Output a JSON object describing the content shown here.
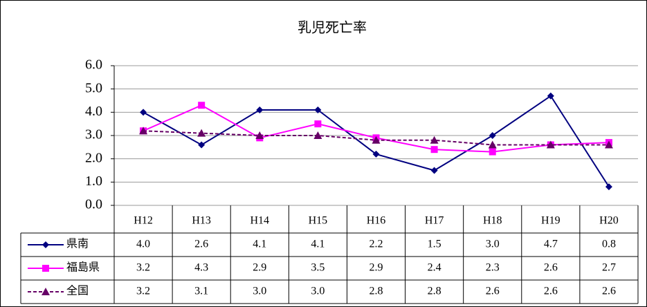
{
  "chart_data": {
    "type": "line",
    "title": "乳児死亡率",
    "categories": [
      "H12",
      "H13",
      "H14",
      "H15",
      "H16",
      "H17",
      "H18",
      "H19",
      "H20"
    ],
    "series": [
      {
        "name": "県南",
        "color": "#000080",
        "marker": "diamond",
        "dash": false,
        "values": [
          4.0,
          2.6,
          4.1,
          4.1,
          2.2,
          1.5,
          3.0,
          4.7,
          0.8
        ],
        "value_labels": [
          "4.0",
          "2.6",
          "4.1",
          "4.1",
          "2.2",
          "1.5",
          "3.0",
          "4.7",
          "0.8"
        ]
      },
      {
        "name": "福島県",
        "color": "#ff00ff",
        "marker": "square",
        "dash": false,
        "values": [
          3.2,
          4.3,
          2.9,
          3.5,
          2.9,
          2.4,
          2.3,
          2.6,
          2.7
        ],
        "value_labels": [
          "3.2",
          "4.3",
          "2.9",
          "3.5",
          "2.9",
          "2.4",
          "2.3",
          "2.6",
          "2.7"
        ]
      },
      {
        "name": "全国",
        "color": "#660066",
        "marker": "triangle",
        "dash": true,
        "values": [
          3.2,
          3.1,
          3.0,
          3.0,
          2.8,
          2.8,
          2.6,
          2.6,
          2.6
        ],
        "value_labels": [
          "3.2",
          "3.1",
          "3.0",
          "3.0",
          "2.8",
          "2.8",
          "2.6",
          "2.6",
          "2.6"
        ]
      }
    ],
    "ylim": [
      0,
      6
    ],
    "yticks": [
      {
        "value": 0,
        "label": "0.0"
      },
      {
        "value": 1,
        "label": "1.0"
      },
      {
        "value": 2,
        "label": "2.0"
      },
      {
        "value": 3,
        "label": "3.0"
      },
      {
        "value": 4,
        "label": "4.0"
      },
      {
        "value": 5,
        "label": "5.0"
      },
      {
        "value": 6,
        "label": "6.0"
      }
    ],
    "grid": true
  }
}
